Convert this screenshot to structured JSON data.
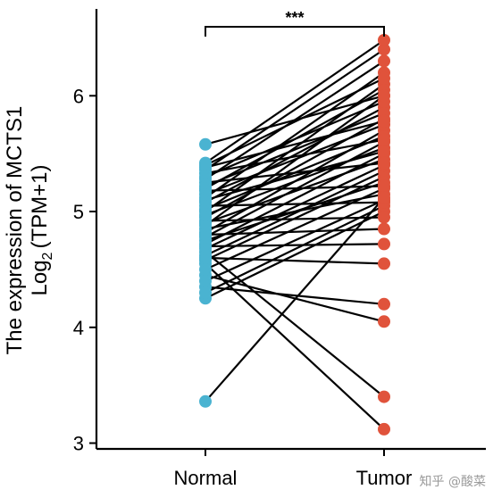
{
  "chart_data": {
    "type": "scatter",
    "title": "",
    "ylabel_line1": "The expression of MCTS1",
    "ylabel_line2_base": "Log",
    "ylabel_line2_sub": "2",
    "ylabel_line2_rest": "(TPM+1)",
    "categories": [
      "Normal",
      "Tumor"
    ],
    "yticks": [
      3,
      4,
      5,
      6
    ],
    "ylim": [
      2.95,
      6.75
    ],
    "significance": "***",
    "group_colors": {
      "Normal": "#4ab3d1",
      "Tumor": "#e0533b"
    },
    "pairs": [
      [
        4.25,
        5.0
      ],
      [
        4.3,
        5.05
      ],
      [
        4.35,
        4.2
      ],
      [
        4.4,
        5.1
      ],
      [
        4.45,
        4.05
      ],
      [
        4.5,
        5.2
      ],
      [
        4.55,
        3.12
      ],
      [
        4.58,
        5.3
      ],
      [
        4.6,
        4.55
      ],
      [
        4.62,
        5.35
      ],
      [
        4.65,
        3.4
      ],
      [
        4.68,
        5.4
      ],
      [
        4.7,
        4.72
      ],
      [
        4.72,
        5.5
      ],
      [
        4.75,
        5.25
      ],
      [
        4.78,
        5.6
      ],
      [
        4.8,
        4.85
      ],
      [
        4.82,
        5.7
      ],
      [
        4.85,
        5.15
      ],
      [
        4.88,
        6.0
      ],
      [
        4.9,
        5.45
      ],
      [
        4.92,
        4.95
      ],
      [
        4.95,
        5.8
      ],
      [
        4.97,
        5.55
      ],
      [
        5.0,
        6.1
      ],
      [
        5.02,
        5.65
      ],
      [
        5.05,
        5.08
      ],
      [
        5.08,
        5.9
      ],
      [
        5.1,
        5.52
      ],
      [
        5.12,
        6.2
      ],
      [
        5.15,
        5.75
      ],
      [
        5.18,
        5.22
      ],
      [
        5.2,
        6.05
      ],
      [
        5.22,
        5.85
      ],
      [
        5.25,
        5.42
      ],
      [
        5.28,
        6.3
      ],
      [
        5.3,
        5.95
      ],
      [
        5.33,
        5.62
      ],
      [
        5.36,
        6.4
      ],
      [
        5.38,
        5.78
      ],
      [
        5.4,
        6.15
      ],
      [
        5.42,
        6.48
      ],
      [
        5.58,
        6.0
      ],
      [
        3.36,
        5.12
      ]
    ]
  },
  "watermark": "知乎 @酸菜"
}
